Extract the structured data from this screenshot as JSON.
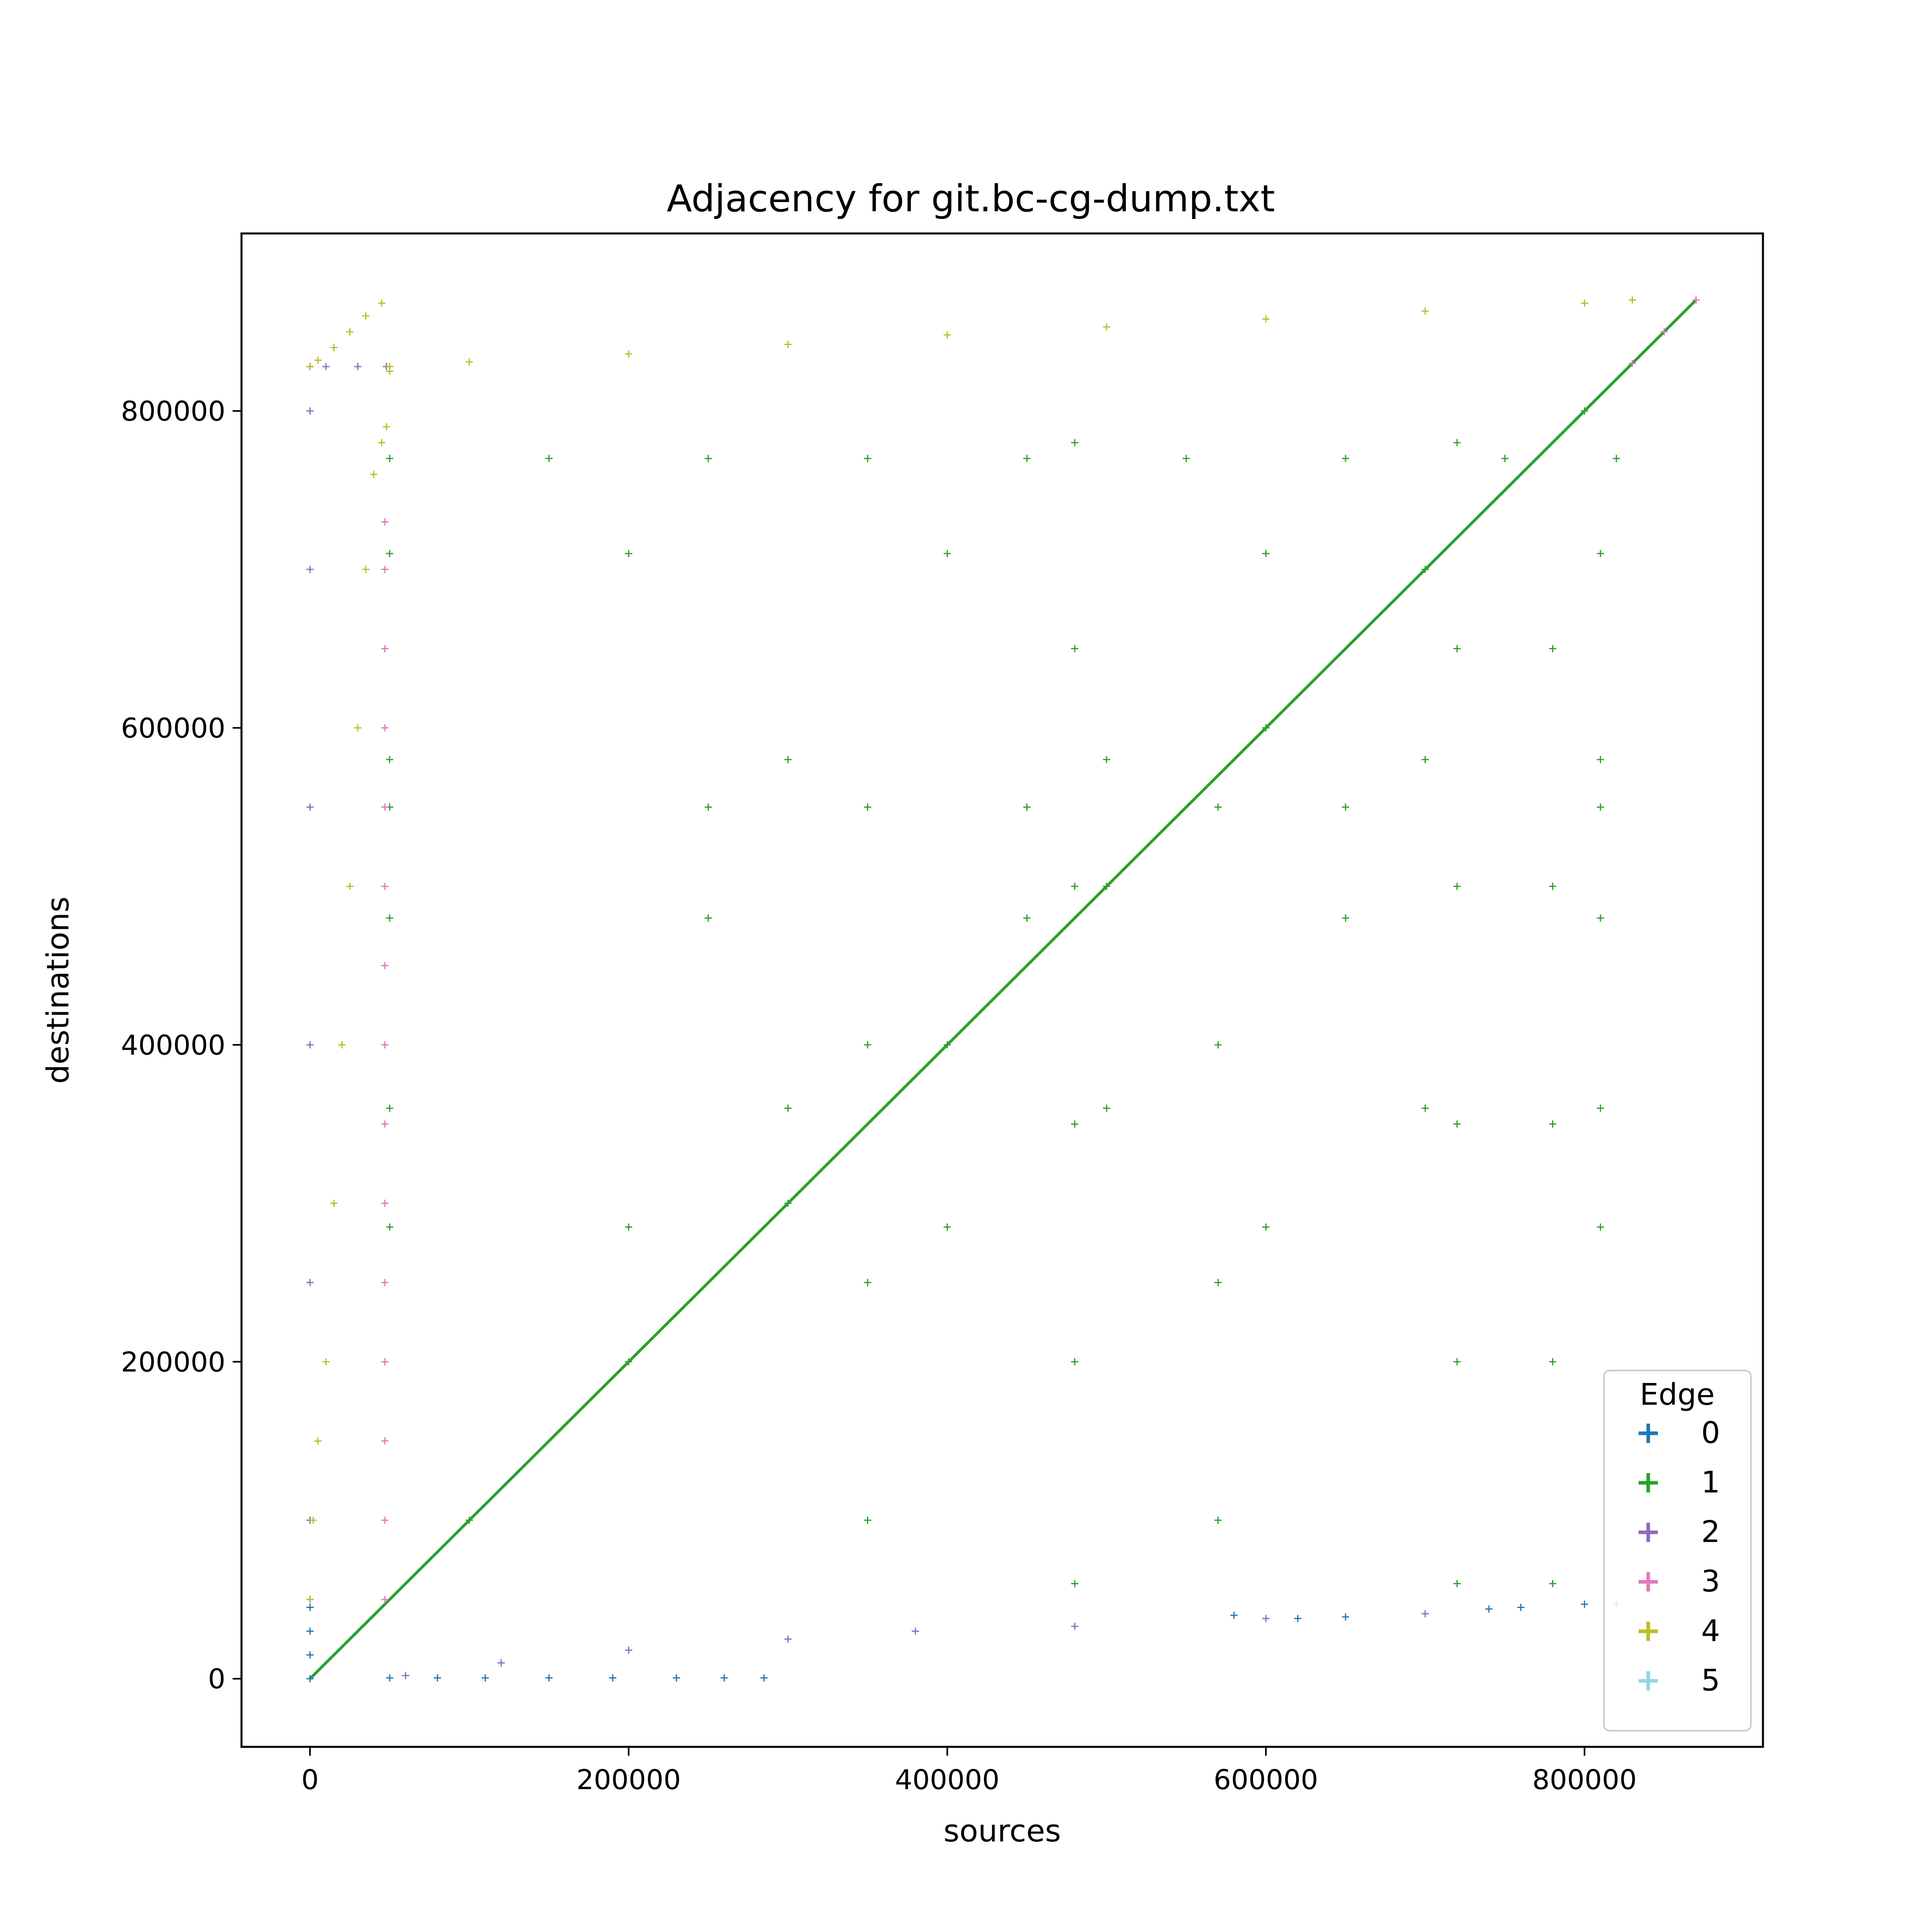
{
  "chart_data": {
    "type": "scatter",
    "title": "Adjacency for git.bc-cg-dump.txt",
    "xlabel": "sources",
    "ylabel": "destinations",
    "xlim": [
      -43000,
      912000
    ],
    "ylim": [
      -43000,
      912000
    ],
    "xticks": [
      {
        "value": 0,
        "label": "0"
      },
      {
        "value": 200000,
        "label": "200000"
      },
      {
        "value": 400000,
        "label": "400000"
      },
      {
        "value": 600000,
        "label": "600000"
      },
      {
        "value": 800000,
        "label": "800000"
      }
    ],
    "yticks": [
      {
        "value": 0,
        "label": "0"
      },
      {
        "value": 200000,
        "label": "200000"
      },
      {
        "value": 400000,
        "label": "400000"
      },
      {
        "value": 600000,
        "label": "600000"
      },
      {
        "value": 800000,
        "label": "800000"
      }
    ],
    "grid": false,
    "marker": "+",
    "legend": {
      "title": "Edge",
      "placement": "lower-right",
      "entries": [
        {
          "label": "0",
          "color": "#1f77b4"
        },
        {
          "label": "1",
          "color": "#2ca02c"
        },
        {
          "label": "2",
          "color": "#9467bd"
        },
        {
          "label": "3",
          "color": "#e377c2"
        },
        {
          "label": "4",
          "color": "#bcbd22"
        },
        {
          "label": "5",
          "color": "#8fd8e0"
        }
      ]
    },
    "series": [
      {
        "name": "0",
        "color": "#1f77b4",
        "x": [
          0,
          0,
          0,
          0,
          0,
          50000,
          80000,
          110000,
          150000,
          190000,
          230000,
          260000,
          285000,
          580000,
          620000,
          650000,
          740000,
          760000,
          800000
        ],
        "y": [
          0,
          15000,
          30000,
          45000,
          50000,
          500,
          500,
          500,
          500,
          500,
          500,
          500,
          500,
          40000,
          38000,
          39000,
          44000,
          45000,
          47000
        ]
      },
      {
        "name": "1",
        "color": "#2ca02c",
        "note_free": true,
        "x": [
          50000,
          150000,
          250000,
          350000,
          450000,
          550000,
          650000,
          750000,
          820000,
          50000,
          200000,
          400000,
          600000,
          810000,
          50000,
          300000,
          500000,
          700000,
          810000,
          50000,
          250000,
          450000,
          650000,
          810000,
          50000,
          250000,
          450000,
          650000,
          810000,
          50000,
          300000,
          500000,
          700000,
          810000,
          50000,
          200000,
          400000,
          600000,
          810000,
          480000,
          480000,
          480000,
          480000,
          480000,
          480000,
          720000,
          720000,
          720000,
          720000,
          720000,
          720000,
          780000,
          780000,
          780000,
          780000,
          780000,
          350000,
          350000,
          350000,
          350000,
          570000,
          570000,
          570000,
          570000,
          100000,
          200000,
          300000,
          400000,
          500000,
          600000,
          700000,
          800000
        ],
        "y": [
          770000,
          770000,
          770000,
          770000,
          770000,
          770000,
          770000,
          770000,
          770000,
          710000,
          710000,
          710000,
          710000,
          710000,
          580000,
          580000,
          580000,
          580000,
          580000,
          550000,
          550000,
          550000,
          550000,
          550000,
          480000,
          480000,
          480000,
          480000,
          480000,
          360000,
          360000,
          360000,
          360000,
          360000,
          285000,
          285000,
          285000,
          285000,
          285000,
          60000,
          200000,
          350000,
          500000,
          650000,
          780000,
          60000,
          200000,
          350000,
          500000,
          650000,
          780000,
          60000,
          200000,
          350000,
          500000,
          650000,
          100000,
          250000,
          400000,
          550000,
          100000,
          250000,
          400000,
          550000,
          100000,
          200000,
          300000,
          400000,
          500000,
          600000,
          700000,
          800000
        ]
      },
      {
        "name": "2",
        "color": "#9467bd",
        "x": [
          0,
          0,
          0,
          0,
          0,
          0,
          0,
          0,
          10000,
          30000,
          48000,
          60000,
          120000,
          200000,
          300000,
          380000,
          480000,
          600000,
          700000,
          820000,
          870000
        ],
        "y": [
          100000,
          250000,
          400000,
          550000,
          700000,
          800000,
          828000,
          828000,
          828000,
          828000,
          828000,
          2000,
          10000,
          18000,
          25000,
          30000,
          33000,
          38000,
          41000,
          47000,
          870000
        ]
      },
      {
        "name": "3",
        "color": "#e377c2",
        "x": [
          47000,
          47000,
          47000,
          47000,
          47000,
          47000,
          47000,
          47000,
          47000,
          47000,
          47000,
          47000,
          47000,
          47000,
          47000,
          830000,
          850000,
          870000
        ],
        "y": [
          50000,
          100000,
          150000,
          200000,
          250000,
          300000,
          350000,
          400000,
          450000,
          500000,
          550000,
          600000,
          650000,
          700000,
          730000,
          830000,
          850000,
          870000
        ]
      },
      {
        "name": "4",
        "color": "#bcbd22",
        "x": [
          0,
          2000,
          5000,
          10000,
          15000,
          20000,
          25000,
          30000,
          35000,
          40000,
          45000,
          48000,
          0,
          5000,
          15000,
          25000,
          35000,
          45000,
          50000,
          50000,
          100000,
          200000,
          300000,
          400000,
          500000,
          600000,
          700000,
          800000,
          830000
        ],
        "y": [
          50000,
          100000,
          150000,
          200000,
          300000,
          400000,
          500000,
          600000,
          700000,
          760000,
          780000,
          790000,
          828000,
          832000,
          840000,
          850000,
          860000,
          868000,
          825000,
          828000,
          831000,
          836000,
          842000,
          848000,
          853000,
          858000,
          863000,
          868000,
          870000
        ]
      },
      {
        "name": "5",
        "color": "#8fd8e0",
        "x": [],
        "y": []
      }
    ],
    "diagonal": {
      "from": 0,
      "to": 870000
    }
  }
}
